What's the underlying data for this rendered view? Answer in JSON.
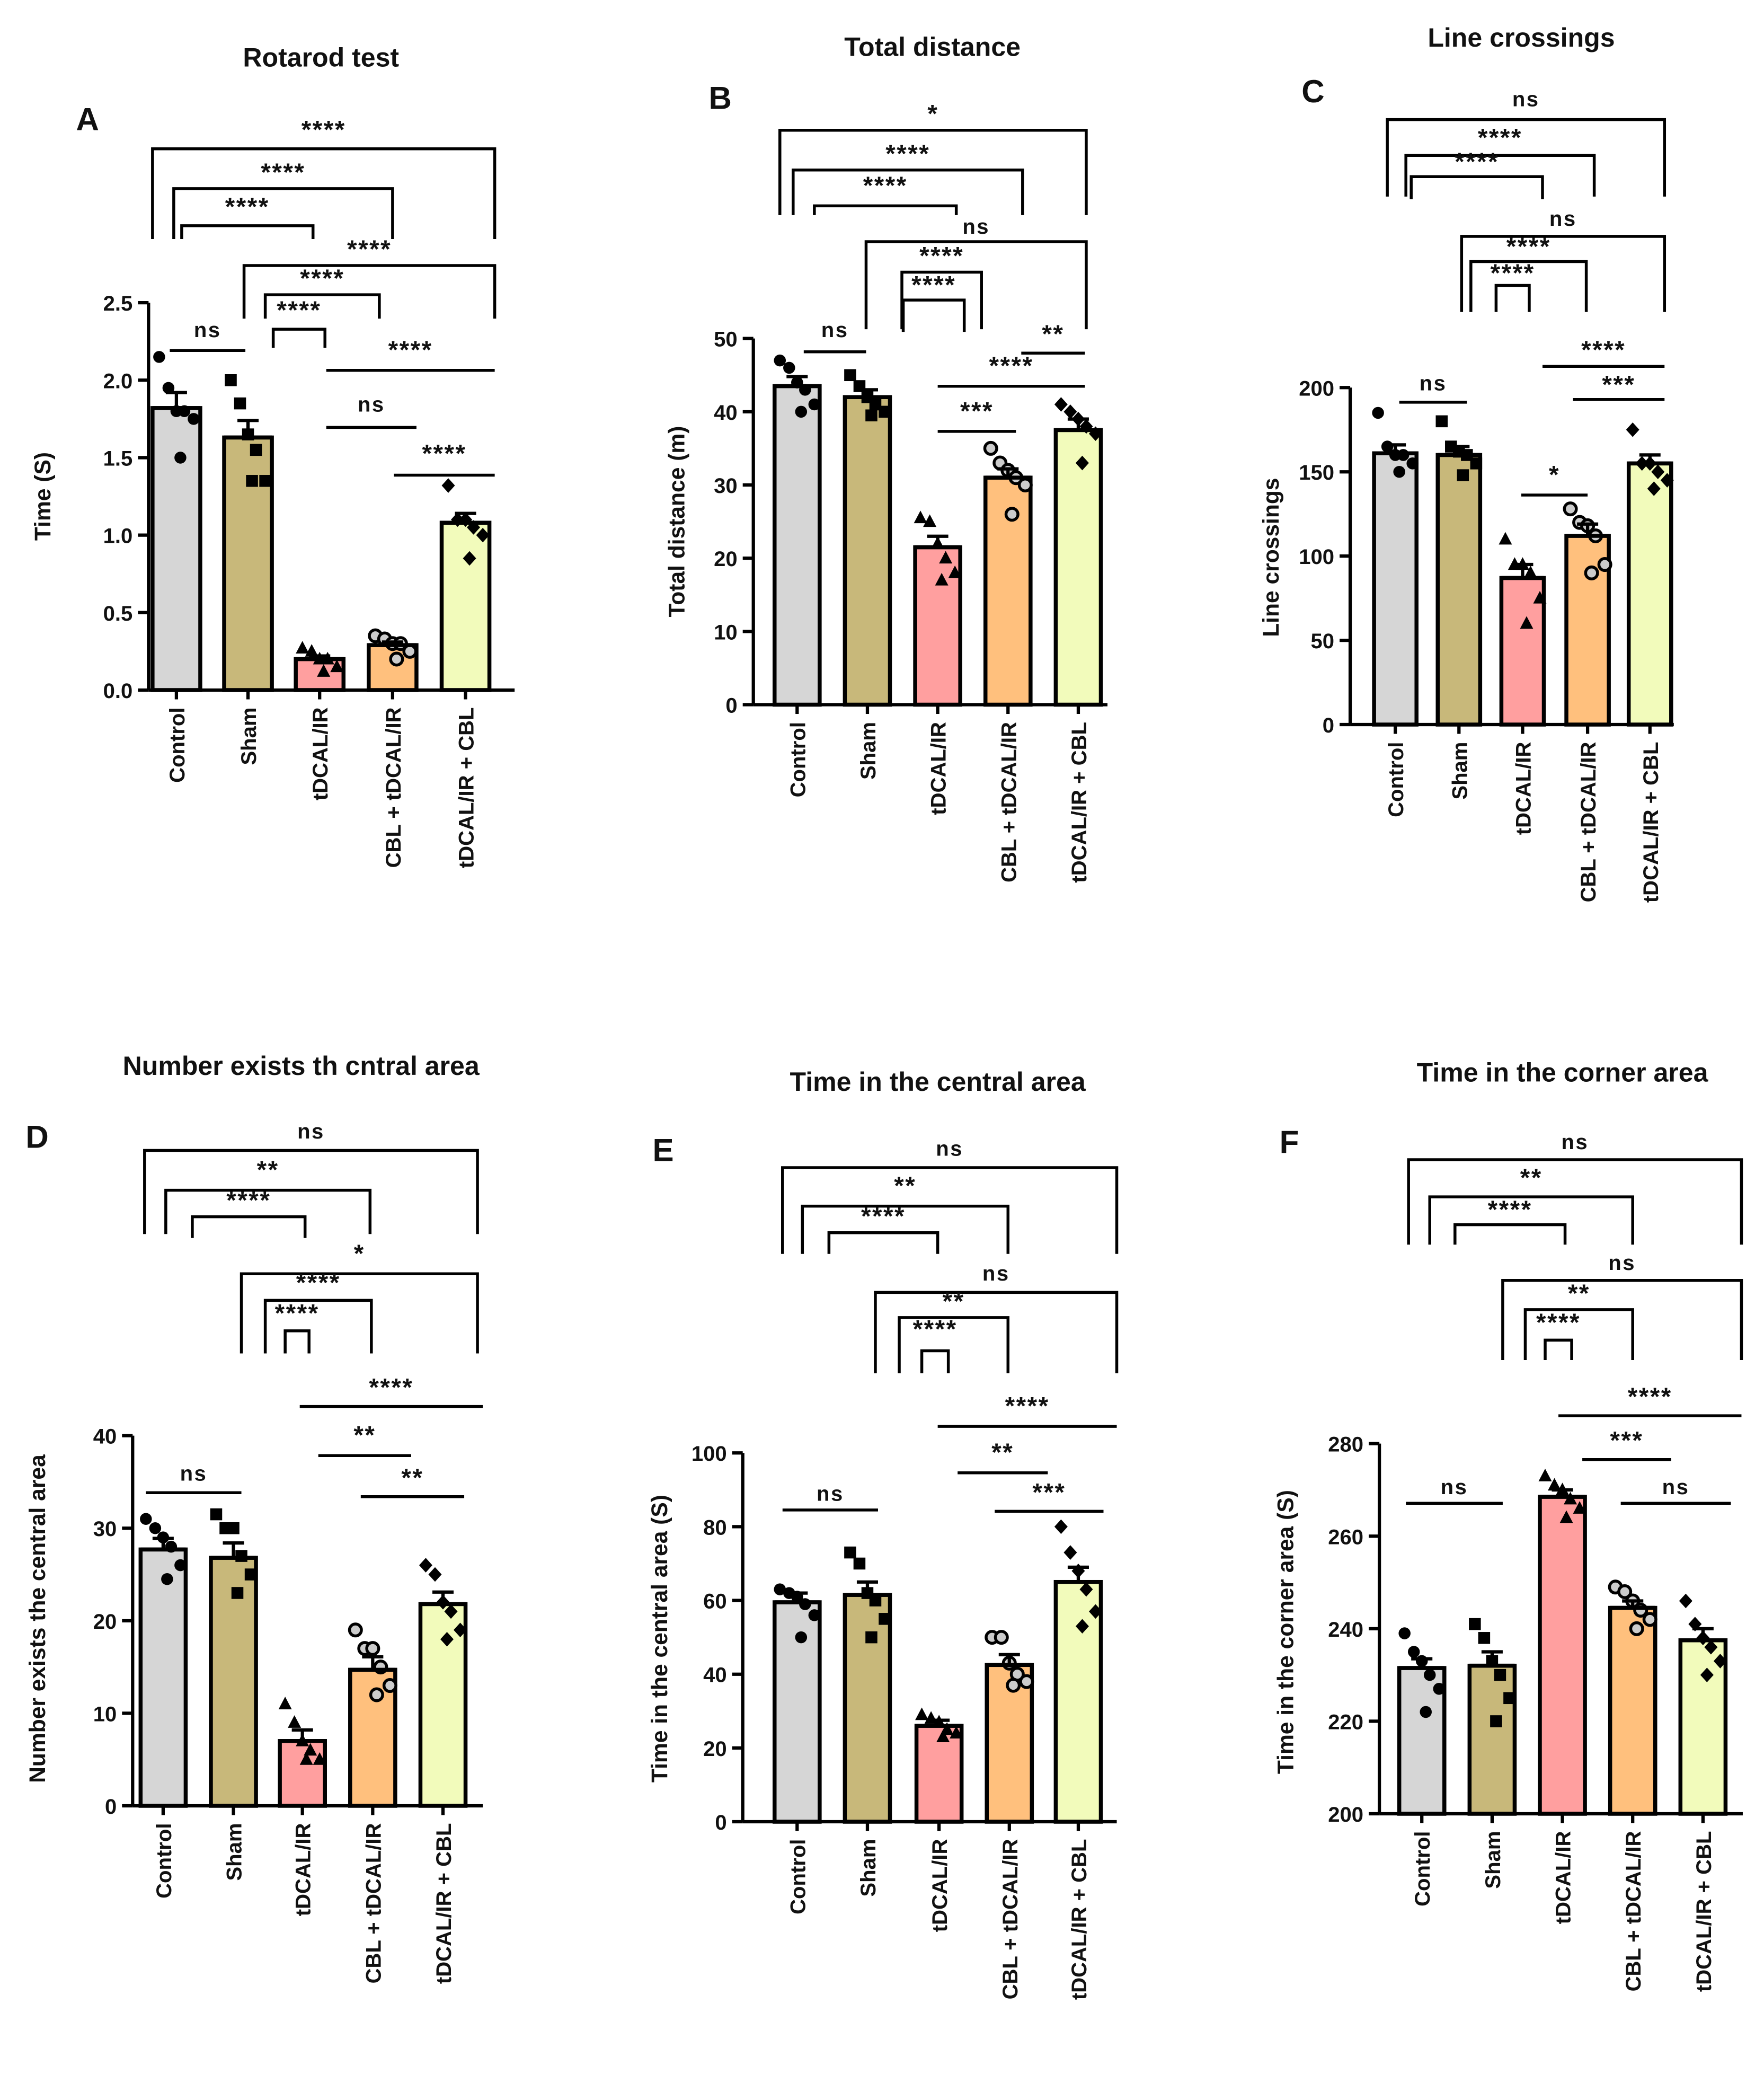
{
  "group_colors": [
    "#d6d6d6",
    "#c8b87a",
    "#ff9f9f",
    "#ffc07d",
    "#f2fbbb"
  ],
  "chart_data": [
    {
      "type": "bar",
      "panel": "A",
      "title": "Rotarod test",
      "ylabel": "Time (S)",
      "categories": [
        "Control",
        "Sham",
        "tDCAL/IR",
        "CBL + tDCAL/IR",
        "tDCAL/IR + CBL"
      ],
      "ylim": [
        0,
        2.5
      ],
      "yticks": [
        "0.0",
        "0.5",
        "1.0",
        "1.5",
        "2.0",
        "2.5"
      ],
      "means": [
        1.82,
        1.63,
        0.2,
        0.29,
        1.08
      ],
      "sem": [
        0.1,
        0.11,
        0.02,
        0.02,
        0.06
      ],
      "points": [
        [
          2.15,
          1.95,
          1.8,
          1.8,
          1.75,
          1.5
        ],
        [
          2.0,
          1.85,
          1.65,
          1.55,
          1.35,
          1.35
        ],
        [
          0.27,
          0.25,
          0.2,
          0.2,
          0.15,
          0.12
        ],
        [
          0.35,
          0.33,
          0.3,
          0.3,
          0.25,
          0.2
        ],
        [
          1.32,
          1.1,
          1.1,
          1.05,
          1.0,
          0.85
        ]
      ],
      "comparisons": [
        {
          "from": 0,
          "to": 4,
          "label": "****",
          "style": "bracket"
        },
        {
          "from": 0,
          "to": 3,
          "label": "****",
          "style": "bracket"
        },
        {
          "from": 0,
          "to": 2,
          "label": "****",
          "style": "bracket"
        },
        {
          "from": 1,
          "to": 4,
          "label": "****",
          "style": "bracket"
        },
        {
          "from": 1,
          "to": 3,
          "label": "****",
          "style": "bracket"
        },
        {
          "from": 1,
          "to": 2,
          "label": "****",
          "style": "bracket"
        },
        {
          "from": 0,
          "to": 1,
          "label": "ns",
          "style": "line"
        },
        {
          "from": 2,
          "to": 4,
          "label": "****",
          "style": "line"
        },
        {
          "from": 2,
          "to": 3,
          "label": "ns",
          "style": "line"
        },
        {
          "from": 3,
          "to": 4,
          "label": "****",
          "style": "line"
        }
      ]
    },
    {
      "type": "bar",
      "panel": "B",
      "title": "Total distance",
      "ylabel": "Total distance (m)",
      "categories": [
        "Control",
        "Sham",
        "tDCAL/IR",
        "CBL + tDCAL/IR",
        "tDCAL/IR + CBL"
      ],
      "ylim": [
        0,
        50
      ],
      "yticks": [
        "0",
        "10",
        "20",
        "30",
        "40",
        "50"
      ],
      "means": [
        43.5,
        42,
        21.5,
        31,
        37.5
      ],
      "sem": [
        1.3,
        1.0,
        1.5,
        1.2,
        1.5
      ],
      "points": [
        [
          47,
          46,
          44,
          43,
          41,
          40
        ],
        [
          45,
          43.5,
          42,
          41,
          40,
          39.5
        ],
        [
          25.5,
          25,
          22,
          20,
          18,
          17
        ],
        [
          35,
          33,
          32,
          31,
          30,
          26
        ],
        [
          41,
          40,
          39,
          38,
          37,
          33
        ]
      ],
      "comparisons": [
        {
          "from": 0,
          "to": 4,
          "label": "*",
          "style": "bracket"
        },
        {
          "from": 0,
          "to": 3,
          "label": "****",
          "style": "bracket"
        },
        {
          "from": 0,
          "to": 2,
          "label": "****",
          "style": "bracket"
        },
        {
          "from": 1,
          "to": 4,
          "label": "ns",
          "style": "bracket"
        },
        {
          "from": 1,
          "to": 3,
          "label": "****",
          "style": "bracket"
        },
        {
          "from": 1,
          "to": 2,
          "label": "****",
          "style": "bracket"
        },
        {
          "from": 0,
          "to": 1,
          "label": "ns",
          "style": "line"
        },
        {
          "from": 3,
          "to": 4,
          "label": "**",
          "style": "line"
        },
        {
          "from": 2,
          "to": 4,
          "label": "****",
          "style": "line"
        },
        {
          "from": 2,
          "to": 3,
          "label": "***",
          "style": "line"
        }
      ]
    },
    {
      "type": "bar",
      "panel": "C",
      "title": "Line crossings",
      "ylabel": "Line crossings",
      "categories": [
        "Control",
        "Sham",
        "tDCAL/IR",
        "CBL + tDCAL/IR",
        "tDCAL/IR + CBL"
      ],
      "ylim": [
        0,
        200
      ],
      "yticks": [
        "0",
        "50",
        "100",
        "150",
        "200"
      ],
      "means": [
        161,
        160,
        87,
        112,
        155
      ],
      "sem": [
        5,
        5,
        8,
        7,
        5
      ],
      "points": [
        [
          185,
          165,
          160,
          160,
          155,
          150
        ],
        [
          180,
          165,
          162,
          160,
          155,
          148
        ],
        [
          110,
          95,
          95,
          90,
          75,
          60
        ],
        [
          128,
          120,
          118,
          112,
          95,
          90
        ],
        [
          175,
          155,
          155,
          150,
          145,
          140
        ]
      ],
      "comparisons": [
        {
          "from": 0,
          "to": 4,
          "label": "ns",
          "style": "bracket"
        },
        {
          "from": 0,
          "to": 3,
          "label": "****",
          "style": "bracket"
        },
        {
          "from": 0,
          "to": 2,
          "label": "****",
          "style": "bracket"
        },
        {
          "from": 1,
          "to": 4,
          "label": "ns",
          "style": "bracket"
        },
        {
          "from": 1,
          "to": 3,
          "label": "****",
          "style": "bracket"
        },
        {
          "from": 1,
          "to": 2,
          "label": "****",
          "style": "bracket"
        },
        {
          "from": 0,
          "to": 1,
          "label": "ns",
          "style": "line"
        },
        {
          "from": 2,
          "to": 4,
          "label": "****",
          "style": "line"
        },
        {
          "from": 3,
          "to": 4,
          "label": "***",
          "style": "line"
        },
        {
          "from": 2,
          "to": 3,
          "label": "*",
          "style": "line"
        }
      ]
    },
    {
      "type": "bar",
      "panel": "D",
      "title": "Number exists th cntral area",
      "ylabel": "Number exists the central area",
      "categories": [
        "Control",
        "Sham",
        "tDCAL/IR",
        "CBL + tDCAL/IR",
        "tDCAL/IR + CBL"
      ],
      "ylim": [
        0,
        40
      ],
      "yticks": [
        "0",
        "10",
        "20",
        "30",
        "40"
      ],
      "means": [
        27.7,
        26.8,
        7,
        14.7,
        21.8
      ],
      "sem": [
        1.2,
        1.6,
        1.2,
        1.4,
        1.3
      ],
      "points": [
        [
          31,
          30,
          29,
          28,
          26,
          24.5
        ],
        [
          31.5,
          30,
          30,
          27,
          25,
          23
        ],
        [
          11,
          9,
          7,
          6,
          5,
          5
        ],
        [
          19,
          17,
          17,
          15,
          13,
          12
        ],
        [
          26,
          25,
          22,
          21,
          19,
          18
        ]
      ],
      "comparisons": [
        {
          "from": 0,
          "to": 4,
          "label": "ns",
          "style": "bracket"
        },
        {
          "from": 0,
          "to": 3,
          "label": "**",
          "style": "bracket"
        },
        {
          "from": 0,
          "to": 2,
          "label": "****",
          "style": "bracket"
        },
        {
          "from": 1,
          "to": 4,
          "label": "*",
          "style": "bracket"
        },
        {
          "from": 1,
          "to": 3,
          "label": "****",
          "style": "bracket"
        },
        {
          "from": 1,
          "to": 2,
          "label": "****",
          "style": "bracket"
        },
        {
          "from": 0,
          "to": 1,
          "label": "ns",
          "style": "line"
        },
        {
          "from": 2,
          "to": 4,
          "label": "****",
          "style": "line"
        },
        {
          "from": 2,
          "to": 3,
          "label": "**",
          "style": "line"
        },
        {
          "from": 3,
          "to": 4,
          "label": "**",
          "style": "line"
        }
      ]
    },
    {
      "type": "bar",
      "panel": "E",
      "title": "Time in the central area",
      "ylabel": "Time in the central area (S)",
      "categories": [
        "Control",
        "Sham",
        "tDCAL/IR",
        "CBL + tDCAL/IR",
        "tDCAL/IR + CBL"
      ],
      "ylim": [
        0,
        100
      ],
      "yticks": [
        "0",
        "20",
        "40",
        "60",
        "80",
        "100"
      ],
      "means": [
        59.5,
        61.5,
        26,
        42.5,
        65
      ],
      "sem": [
        2.5,
        3.5,
        1.5,
        2.8,
        4
      ],
      "points": [
        [
          63,
          62,
          61,
          59,
          56,
          50
        ],
        [
          73,
          70,
          62,
          60,
          55,
          50
        ],
        [
          29,
          28,
          27,
          25,
          24,
          23
        ],
        [
          50,
          50,
          43,
          40,
          38,
          37
        ],
        [
          80,
          73,
          68,
          63,
          57,
          53
        ]
      ],
      "comparisons": [
        {
          "from": 0,
          "to": 4,
          "label": "ns",
          "style": "bracket"
        },
        {
          "from": 0,
          "to": 3,
          "label": "**",
          "style": "bracket"
        },
        {
          "from": 0,
          "to": 2,
          "label": "****",
          "style": "bracket"
        },
        {
          "from": 1,
          "to": 4,
          "label": "ns",
          "style": "bracket"
        },
        {
          "from": 1,
          "to": 3,
          "label": "**",
          "style": "bracket"
        },
        {
          "from": 1,
          "to": 2,
          "label": "****",
          "style": "bracket"
        },
        {
          "from": 0,
          "to": 1,
          "label": "ns",
          "style": "line"
        },
        {
          "from": 2,
          "to": 4,
          "label": "****",
          "style": "line"
        },
        {
          "from": 2,
          "to": 3,
          "label": "**",
          "style": "line"
        },
        {
          "from": 3,
          "to": 4,
          "label": "***",
          "style": "line"
        }
      ]
    },
    {
      "type": "bar",
      "panel": "F",
      "title": "Time in the corner area",
      "ylabel": "Time in the corner area (S)",
      "categories": [
        "Control",
        "Sham",
        "tDCAL/IR",
        "CBL + tDCAL/IR",
        "tDCAL/IR + CBL"
      ],
      "ylim": [
        200,
        280
      ],
      "yticks": [
        "200",
        "220",
        "240",
        "260",
        "280"
      ],
      "means": [
        231.5,
        232,
        268.5,
        244.5,
        237.5
      ],
      "sem": [
        2,
        3,
        1.5,
        1.5,
        2.5
      ],
      "points": [
        [
          239,
          235,
          233,
          230,
          227,
          222
        ],
        [
          241,
          238,
          233,
          230,
          225,
          220
        ],
        [
          273,
          271,
          270,
          268,
          266,
          264
        ],
        [
          249,
          248,
          246,
          244,
          242,
          240
        ],
        [
          246,
          241,
          238,
          236,
          233,
          230
        ]
      ],
      "comparisons": [
        {
          "from": 0,
          "to": 4,
          "label": "ns",
          "style": "bracket"
        },
        {
          "from": 0,
          "to": 3,
          "label": "**",
          "style": "bracket"
        },
        {
          "from": 0,
          "to": 2,
          "label": "****",
          "style": "bracket"
        },
        {
          "from": 1,
          "to": 4,
          "label": "ns",
          "style": "bracket"
        },
        {
          "from": 1,
          "to": 3,
          "label": "**",
          "style": "bracket"
        },
        {
          "from": 1,
          "to": 2,
          "label": "****",
          "style": "bracket"
        },
        {
          "from": 0,
          "to": 1,
          "label": "ns",
          "style": "line"
        },
        {
          "from": 2,
          "to": 4,
          "label": "****",
          "style": "line"
        },
        {
          "from": 2,
          "to": 3,
          "label": "***",
          "style": "line"
        },
        {
          "from": 3,
          "to": 4,
          "label": "ns",
          "style": "line"
        }
      ]
    }
  ]
}
